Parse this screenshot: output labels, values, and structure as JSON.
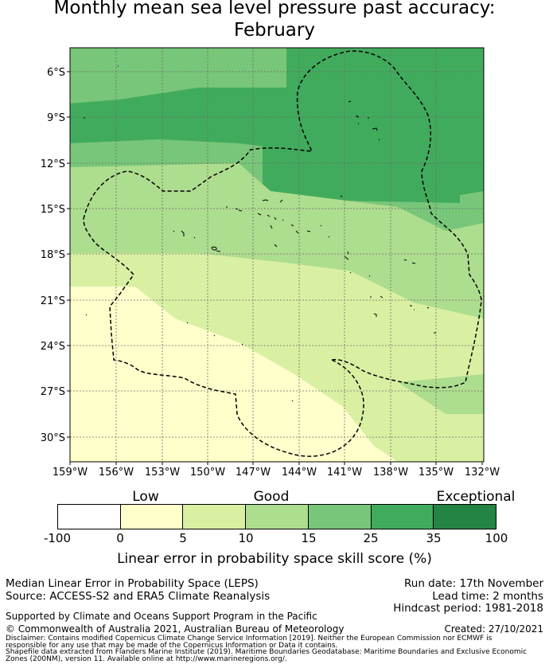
{
  "title_line1": "Monthly mean sea level pressure past accuracy:",
  "title_line2": "February",
  "map": {
    "lat_labels": [
      "6°S",
      "9°S",
      "12°S",
      "15°S",
      "18°S",
      "21°S",
      "24°S",
      "27°S",
      "30°S"
    ],
    "lon_labels": [
      "159°W",
      "156°W",
      "153°W",
      "150°W",
      "147°W",
      "144°W",
      "141°W",
      "138°W",
      "135°W",
      "132°W"
    ],
    "lat_range": [
      5.3,
      32.5
    ],
    "lon_range": [
      159.0,
      131.8
    ]
  },
  "colorbar": {
    "ticks": [
      "-100",
      "0",
      "5",
      "10",
      "15",
      "25",
      "35",
      "100"
    ],
    "colors": [
      "#ffffff",
      "#ffffcc",
      "#d9f0a3",
      "#addd8e",
      "#78c679",
      "#41ab5d",
      "#238443"
    ],
    "categories": [
      "Low",
      "Good",
      "Exceptional"
    ],
    "label": "Linear error in probability space skill score (%)"
  },
  "info": {
    "line1": "Median Linear Error in Probability Space (LEPS)",
    "line2": "Source: ACCESS-S2 and ERA5 Climate Reanalysis",
    "run_date": "Run date: 17th November",
    "lead_time": "Lead time: 2 months",
    "hindcast": "Hindcast period: 1981-2018",
    "support": "Supported by Climate and Oceans Support Program in the Pacific",
    "copyright": "© Commonwealth of Australia 2021, Australian Bureau of Meteorology",
    "created": "Created: 27/10/2021",
    "disclaimer1": "Disclaimer: Contains modified Copernicus Climate Change Service Information [2019]. Neither the European Commission nor ECMWF is",
    "disclaimer2": "responsible for any use that may be made of the Copernicus Information or Data it contains.",
    "shapefile1": "Shapefile data extracted from Flanders Marine Institute (2019). Maritime Boundaries Geodatabase: Maritime Boundaries and Exclusive Economic",
    "shapefile2": "Zones (200NM), version 11. Available online at http://www.marineregions.org/."
  }
}
